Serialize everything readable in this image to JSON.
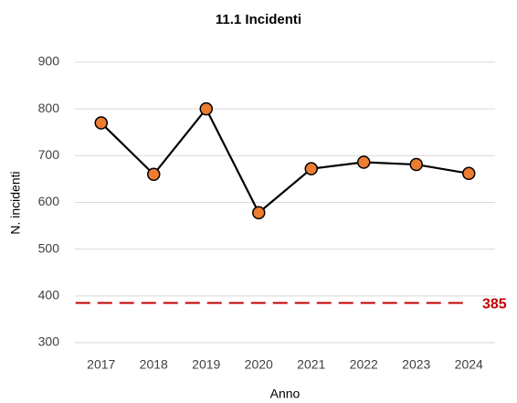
{
  "chart_data": {
    "type": "line",
    "title": "11.1 Incidenti",
    "x_label": "Anno",
    "y_label": "N. incidenti",
    "categories": [
      "2017",
      "2018",
      "2019",
      "2020",
      "2021",
      "2022",
      "2023",
      "2024"
    ],
    "series": [
      {
        "name": "Incidenti",
        "color": "#000000",
        "marker_color": "#ed7d31",
        "values": [
          770,
          660,
          800,
          578,
          672,
          686,
          681,
          662
        ]
      }
    ],
    "reference_line": {
      "value": 385,
      "color": "#c00000"
    },
    "ylim": [
      300,
      900
    ],
    "yticks": [
      300,
      400,
      500,
      600,
      700,
      800,
      900
    ],
    "grid": true
  }
}
